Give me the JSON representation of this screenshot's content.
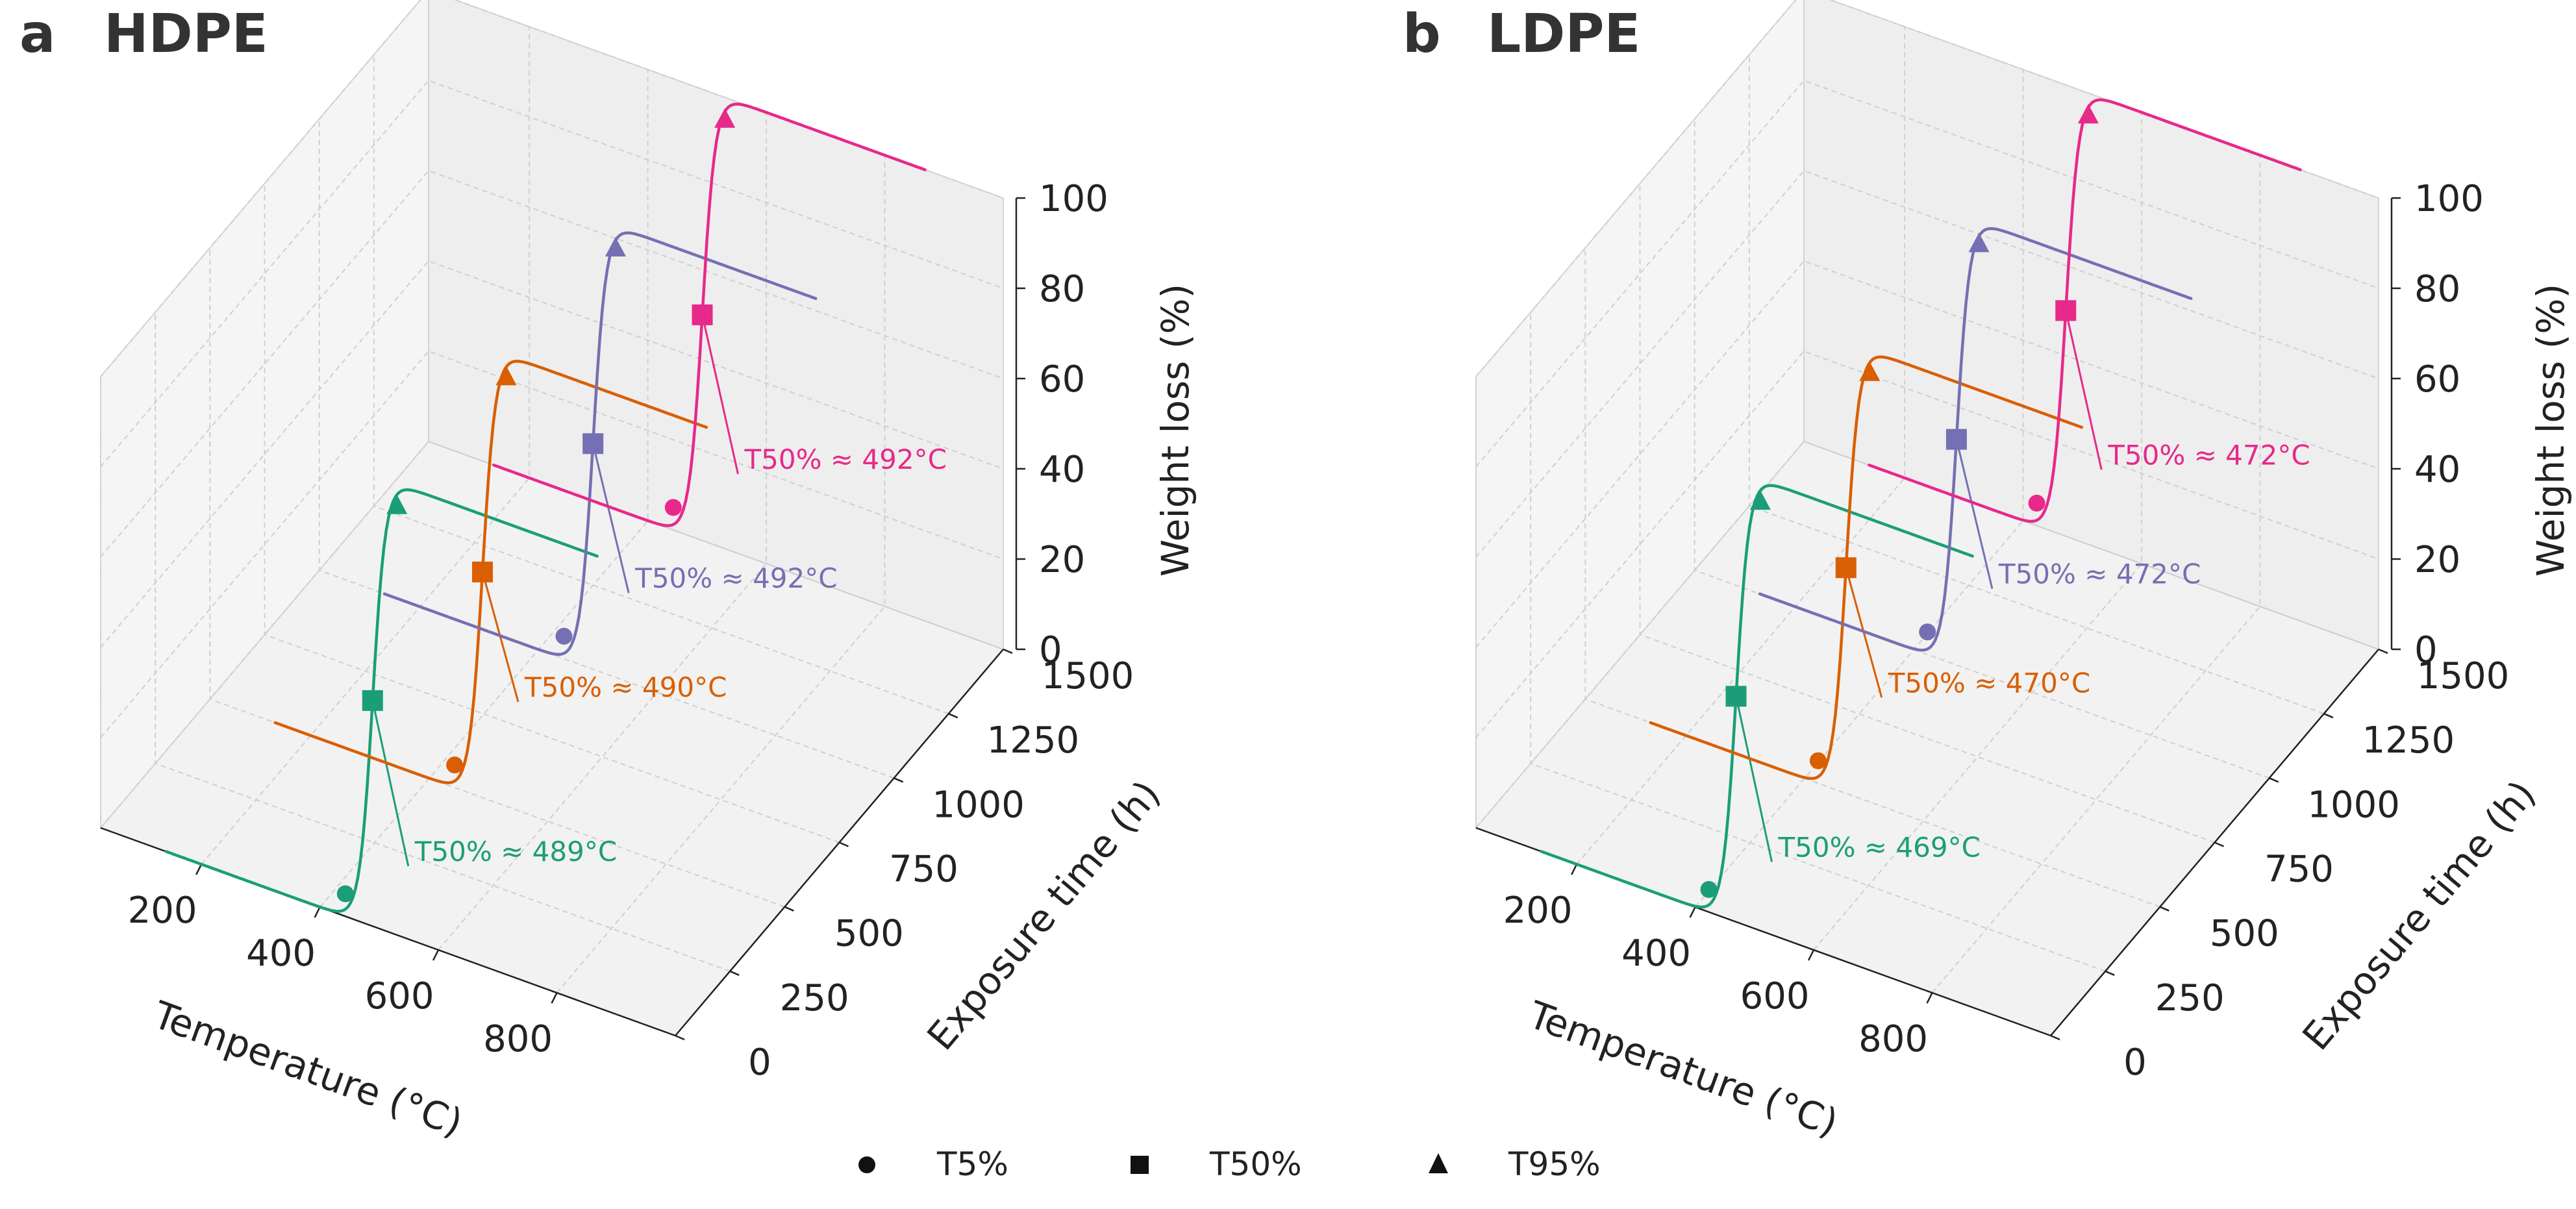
{
  "colors": {
    "green": "#1b9e77",
    "orange": "#d95f02",
    "purple": "#7570b3",
    "pink": "#e7298a"
  },
  "legend": [
    {
      "marker": "circle",
      "label": "T5%"
    },
    {
      "marker": "square",
      "label": "T50%"
    },
    {
      "marker": "triangle",
      "label": "T95%"
    }
  ],
  "chart_data": [
    {
      "type": "line3d",
      "panel_letter": "a",
      "title": "HDPE",
      "xlabel": "Temperature (°C)",
      "ylabel": "Exposure time (h)",
      "zlabel": "Weight loss (%)",
      "xlim": [
        30,
        1000
      ],
      "ylim": [
        0,
        1500
      ],
      "zlim": [
        0,
        100
      ],
      "x_ticks": [
        200,
        400,
        600,
        800
      ],
      "y_ticks": [
        0,
        250,
        500,
        750,
        1000,
        1250,
        1500
      ],
      "z_ticks": [
        0,
        20,
        40,
        60,
        80,
        100
      ],
      "series": [
        {
          "exposure_h": 0,
          "color": "green",
          "T5": 440,
          "T50": 489,
          "T95": 520,
          "annotation": "T50% ≈ 489°C"
        },
        {
          "exposure_h": 500,
          "color": "orange",
          "T5": 440,
          "T50": 490,
          "T95": 520,
          "annotation": "T50% ≈ 490°C"
        },
        {
          "exposure_h": 1000,
          "color": "purple",
          "T5": 440,
          "T50": 492,
          "T95": 520,
          "annotation": "T50% ≈ 492°C"
        },
        {
          "exposure_h": 1500,
          "color": "pink",
          "T5": 440,
          "T50": 492,
          "T95": 520,
          "annotation": "T50% ≈ 492°C"
        }
      ]
    },
    {
      "type": "line3d",
      "panel_letter": "b",
      "title": "LDPE",
      "xlabel": "Temperature (°C)",
      "ylabel": "Exposure time (h)",
      "zlabel": "Weight loss (%)",
      "xlim": [
        30,
        1000
      ],
      "ylim": [
        0,
        1500
      ],
      "zlim": [
        0,
        100
      ],
      "x_ticks": [
        200,
        400,
        600,
        800
      ],
      "y_ticks": [
        0,
        250,
        500,
        750,
        1000,
        1250,
        1500
      ],
      "z_ticks": [
        0,
        20,
        40,
        60,
        80,
        100
      ],
      "series": [
        {
          "exposure_h": 0,
          "color": "green",
          "T5": 420,
          "T50": 469,
          "T95": 500,
          "annotation": "T50% ≈ 469°C"
        },
        {
          "exposure_h": 500,
          "color": "orange",
          "T5": 420,
          "T50": 470,
          "T95": 500,
          "annotation": "T50% ≈ 470°C"
        },
        {
          "exposure_h": 1000,
          "color": "purple",
          "T5": 420,
          "T50": 472,
          "T95": 500,
          "annotation": "T50% ≈ 472°C"
        },
        {
          "exposure_h": 1500,
          "color": "pink",
          "T5": 420,
          "T50": 472,
          "T95": 500,
          "annotation": "T50% ≈ 472°C"
        }
      ]
    }
  ]
}
